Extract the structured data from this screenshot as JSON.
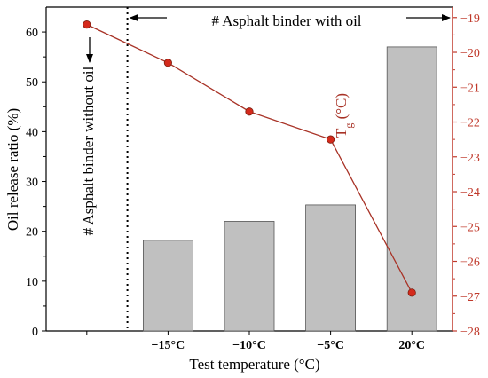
{
  "chart_data": {
    "type": "bar+line",
    "categories": [
      "",
      "−15°C",
      "−10°C",
      "−5°C",
      "20°C"
    ],
    "xlabel": "Test temperature  (°C)",
    "ylabel_left": "Oil release ratio (%)",
    "ylabel_right": "T",
    "ylabel_right_sub": "g",
    "ylabel_right_unit": " (°C)",
    "ylim_left": [
      0,
      65
    ],
    "yticks_left": [
      0,
      10,
      20,
      30,
      40,
      50,
      60
    ],
    "ylim_right": [
      -28,
      -18.7
    ],
    "yticks_right": [
      -28,
      -27,
      -26,
      -25,
      -24,
      -23,
      -22,
      -21,
      -20,
      -19
    ],
    "bars": {
      "values": [
        null,
        18.2,
        22.0,
        25.3,
        57.0
      ],
      "color": "#c0c0c0"
    },
    "line": {
      "values": [
        -19.2,
        -20.3,
        -21.7,
        -22.5,
        -26.9
      ],
      "color": "#a83226",
      "marker_color": "#d42a1c"
    },
    "annotations": {
      "with_oil": "# Asphalt binder with oil",
      "without_oil": "# Asphalt binder without oil"
    },
    "grid": false,
    "right_axis_color": "#c0392b"
  }
}
